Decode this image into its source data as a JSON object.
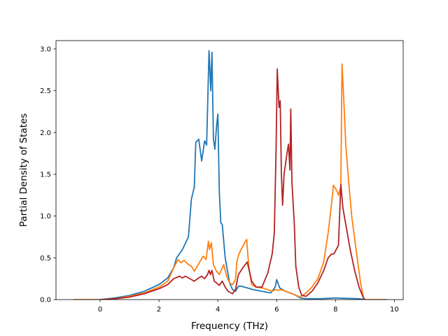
{
  "chart_data": {
    "type": "line",
    "title": "",
    "xlabel": "Frequency (THz)",
    "ylabel": "Partial Density of States",
    "xlim": [
      -1.5,
      10.3
    ],
    "ylim": [
      0,
      3.1
    ],
    "xticks": [
      0,
      2,
      4,
      6,
      8,
      10
    ],
    "yticks": [
      0.0,
      0.5,
      1.0,
      1.5,
      2.0,
      2.5,
      3.0
    ],
    "xtick_labels": [
      "0",
      "2",
      "4",
      "6",
      "8",
      "10"
    ],
    "ytick_labels": [
      "0.0",
      "0.5",
      "1.0",
      "1.5",
      "2.0",
      "2.5",
      "3.0"
    ],
    "grid": false,
    "legend": "none",
    "series": [
      {
        "color": "#1f77b4",
        "points": [
          [
            -0.9,
            0
          ],
          [
            0,
            0
          ],
          [
            0.5,
            0.02
          ],
          [
            1.0,
            0.05
          ],
          [
            1.5,
            0.1
          ],
          [
            2.0,
            0.18
          ],
          [
            2.3,
            0.26
          ],
          [
            2.5,
            0.38
          ],
          [
            2.6,
            0.5
          ],
          [
            2.8,
            0.6
          ],
          [
            3.0,
            0.75
          ],
          [
            3.1,
            1.2
          ],
          [
            3.2,
            1.35
          ],
          [
            3.25,
            1.88
          ],
          [
            3.35,
            1.92
          ],
          [
            3.45,
            1.66
          ],
          [
            3.55,
            1.9
          ],
          [
            3.62,
            1.85
          ],
          [
            3.7,
            2.98
          ],
          [
            3.76,
            2.5
          ],
          [
            3.8,
            2.96
          ],
          [
            3.85,
            1.92
          ],
          [
            3.9,
            1.8
          ],
          [
            3.95,
            2.05
          ],
          [
            4.0,
            2.22
          ],
          [
            4.05,
            1.3
          ],
          [
            4.1,
            0.92
          ],
          [
            4.15,
            0.9
          ],
          [
            4.25,
            0.5
          ],
          [
            4.4,
            0.2
          ],
          [
            4.5,
            0.12
          ],
          [
            4.6,
            0.1
          ],
          [
            4.7,
            0.16
          ],
          [
            4.8,
            0.16
          ],
          [
            4.9,
            0.15
          ],
          [
            5.0,
            0.14
          ],
          [
            5.2,
            0.12
          ],
          [
            5.5,
            0.1
          ],
          [
            5.8,
            0.08
          ],
          [
            5.95,
            0.15
          ],
          [
            6.0,
            0.24
          ],
          [
            6.1,
            0.14
          ],
          [
            6.2,
            0.12
          ],
          [
            6.3,
            0.1
          ],
          [
            6.45,
            0.08
          ],
          [
            6.6,
            0.06
          ],
          [
            6.8,
            0.02
          ],
          [
            7.0,
            0.01
          ],
          [
            7.5,
            0.01
          ],
          [
            8.0,
            0.02
          ],
          [
            8.3,
            0.015
          ],
          [
            8.8,
            0.01
          ],
          [
            9.0,
            0
          ],
          [
            9.75,
            0
          ]
        ]
      },
      {
        "color": "#ff7f0e",
        "points": [
          [
            -0.9,
            0
          ],
          [
            0,
            0
          ],
          [
            0.5,
            0.01
          ],
          [
            1.0,
            0.04
          ],
          [
            1.5,
            0.08
          ],
          [
            2.0,
            0.15
          ],
          [
            2.3,
            0.22
          ],
          [
            2.5,
            0.38
          ],
          [
            2.65,
            0.48
          ],
          [
            2.75,
            0.44
          ],
          [
            2.85,
            0.47
          ],
          [
            3.0,
            0.42
          ],
          [
            3.1,
            0.4
          ],
          [
            3.2,
            0.34
          ],
          [
            3.35,
            0.43
          ],
          [
            3.5,
            0.52
          ],
          [
            3.6,
            0.48
          ],
          [
            3.68,
            0.7
          ],
          [
            3.72,
            0.6
          ],
          [
            3.78,
            0.68
          ],
          [
            3.85,
            0.42
          ],
          [
            3.95,
            0.34
          ],
          [
            4.05,
            0.3
          ],
          [
            4.2,
            0.42
          ],
          [
            4.3,
            0.28
          ],
          [
            4.4,
            0.2
          ],
          [
            4.5,
            0.18
          ],
          [
            4.6,
            0.24
          ],
          [
            4.65,
            0.46
          ],
          [
            4.72,
            0.55
          ],
          [
            4.85,
            0.64
          ],
          [
            4.98,
            0.72
          ],
          [
            5.05,
            0.4
          ],
          [
            5.15,
            0.18
          ],
          [
            5.3,
            0.15
          ],
          [
            5.5,
            0.14
          ],
          [
            5.7,
            0.12
          ],
          [
            5.85,
            0.1
          ],
          [
            5.95,
            0.12
          ],
          [
            6.05,
            0.11
          ],
          [
            6.15,
            0.12
          ],
          [
            6.3,
            0.1
          ],
          [
            6.45,
            0.08
          ],
          [
            6.6,
            0.06
          ],
          [
            6.8,
            0.03
          ],
          [
            7.0,
            0.08
          ],
          [
            7.2,
            0.15
          ],
          [
            7.4,
            0.25
          ],
          [
            7.6,
            0.45
          ],
          [
            7.75,
            0.8
          ],
          [
            7.85,
            1.1
          ],
          [
            7.93,
            1.37
          ],
          [
            8.05,
            1.3
          ],
          [
            8.1,
            1.25
          ],
          [
            8.18,
            1.35
          ],
          [
            8.22,
            2.82
          ],
          [
            8.28,
            2.4
          ],
          [
            8.35,
            1.85
          ],
          [
            8.45,
            1.4
          ],
          [
            8.55,
            1.0
          ],
          [
            8.7,
            0.6
          ],
          [
            8.85,
            0.2
          ],
          [
            8.95,
            0.02
          ],
          [
            9.0,
            0
          ],
          [
            9.75,
            0
          ]
        ]
      },
      {
        "color": "#b22222",
        "points": [
          [
            0,
            0
          ],
          [
            0.5,
            0.01
          ],
          [
            1.0,
            0.03
          ],
          [
            1.5,
            0.07
          ],
          [
            2.0,
            0.13
          ],
          [
            2.3,
            0.18
          ],
          [
            2.5,
            0.25
          ],
          [
            2.7,
            0.28
          ],
          [
            2.8,
            0.26
          ],
          [
            2.9,
            0.28
          ],
          [
            3.1,
            0.24
          ],
          [
            3.2,
            0.22
          ],
          [
            3.35,
            0.26
          ],
          [
            3.45,
            0.28
          ],
          [
            3.55,
            0.25
          ],
          [
            3.65,
            0.3
          ],
          [
            3.7,
            0.35
          ],
          [
            3.75,
            0.3
          ],
          [
            3.8,
            0.35
          ],
          [
            3.88,
            0.22
          ],
          [
            3.95,
            0.2
          ],
          [
            4.05,
            0.17
          ],
          [
            4.15,
            0.22
          ],
          [
            4.25,
            0.15
          ],
          [
            4.35,
            0.1
          ],
          [
            4.5,
            0.07
          ],
          [
            4.6,
            0.12
          ],
          [
            4.7,
            0.3
          ],
          [
            4.85,
            0.38
          ],
          [
            5.0,
            0.45
          ],
          [
            5.1,
            0.3
          ],
          [
            5.15,
            0.22
          ],
          [
            5.3,
            0.15
          ],
          [
            5.5,
            0.15
          ],
          [
            5.7,
            0.32
          ],
          [
            5.85,
            0.55
          ],
          [
            5.92,
            0.8
          ],
          [
            5.98,
            1.8
          ],
          [
            6.02,
            2.76
          ],
          [
            6.08,
            2.3
          ],
          [
            6.12,
            2.38
          ],
          [
            6.16,
            1.5
          ],
          [
            6.2,
            1.13
          ],
          [
            6.25,
            1.5
          ],
          [
            6.35,
            1.75
          ],
          [
            6.4,
            1.86
          ],
          [
            6.45,
            1.55
          ],
          [
            6.48,
            2.28
          ],
          [
            6.52,
            1.4
          ],
          [
            6.6,
            0.9
          ],
          [
            6.65,
            0.4
          ],
          [
            6.75,
            0.15
          ],
          [
            6.85,
            0.05
          ],
          [
            7.0,
            0.04
          ],
          [
            7.2,
            0.1
          ],
          [
            7.4,
            0.2
          ],
          [
            7.6,
            0.35
          ],
          [
            7.75,
            0.5
          ],
          [
            7.85,
            0.54
          ],
          [
            7.95,
            0.55
          ],
          [
            8.1,
            0.65
          ],
          [
            8.18,
            1.38
          ],
          [
            8.25,
            1.1
          ],
          [
            8.35,
            0.9
          ],
          [
            8.5,
            0.6
          ],
          [
            8.65,
            0.35
          ],
          [
            8.8,
            0.15
          ],
          [
            8.95,
            0.02
          ],
          [
            9.0,
            0
          ]
        ]
      }
    ]
  }
}
